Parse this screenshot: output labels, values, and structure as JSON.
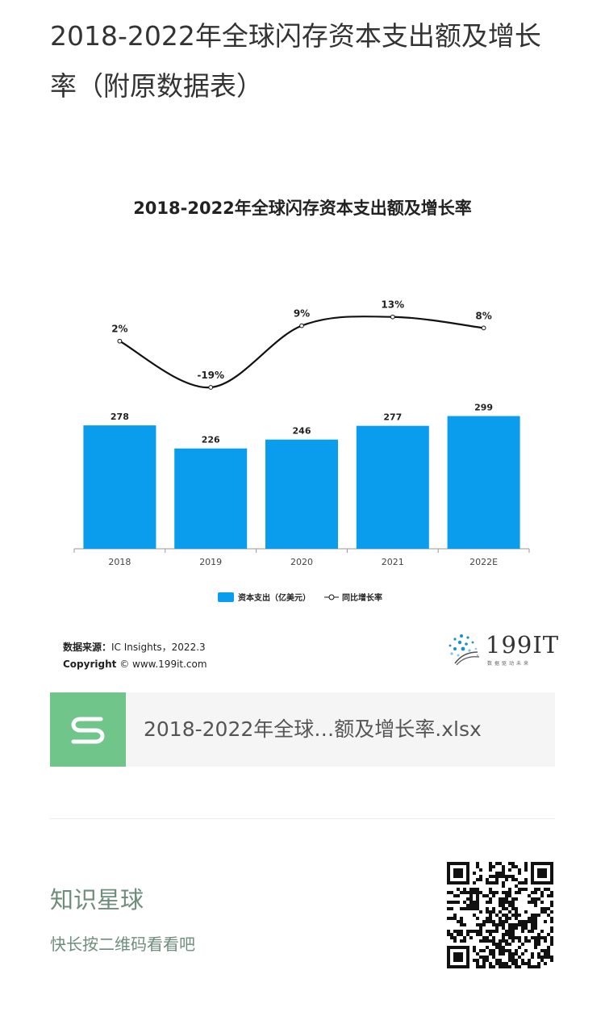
{
  "article": {
    "title": "2018-2022年全球闪存资本支出额及增长率（附原数据表）"
  },
  "chart_data": {
    "type": "bar",
    "title": "2018-2022年全球闪存资本支出额及增长率",
    "categories": [
      "2018",
      "2019",
      "2020",
      "2021",
      "2022E"
    ],
    "series": [
      {
        "name": "资本支出（亿美元）",
        "type": "bar",
        "values": [
          278,
          226,
          246,
          277,
          299
        ],
        "labels": [
          "278",
          "226",
          "246",
          "277",
          "299"
        ],
        "color": "#0a9ded"
      },
      {
        "name": "同比增长率",
        "type": "line",
        "values": [
          2,
          -19,
          9,
          13,
          8
        ],
        "labels": [
          "2%",
          "-19%",
          "9%",
          "13%",
          "8%"
        ],
        "color": "#111111"
      }
    ],
    "ylim": [
      0,
      320
    ],
    "y2lim": [
      -30,
      25
    ],
    "legend_position": "bottom",
    "grid": false
  },
  "source": {
    "label": "数据来源：",
    "text": "IC Insights，2022.3",
    "copyright_label": "Copyright",
    "copyright_text": "© www.199it.com"
  },
  "brand": {
    "logo_text": "199IT",
    "tagline": "数据驱动未来"
  },
  "file": {
    "name": "2018-2022年全球…额及增长率.xlsx",
    "icon": "spreadsheet-s-icon"
  },
  "promo": {
    "title": "知识星球",
    "subtitle": "快长按二维码看看吧"
  }
}
